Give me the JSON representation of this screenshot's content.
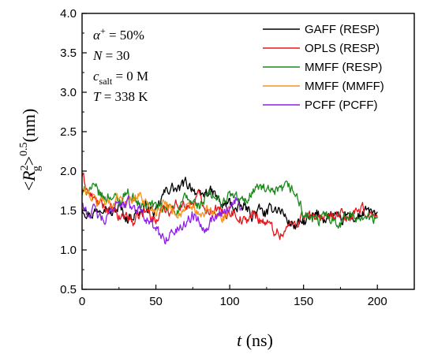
{
  "chart_data": {
    "type": "line",
    "title": "",
    "xlabel": "(ns)",
    "xlabel_var": "t",
    "ylabel": "(nm)",
    "ylabel_var": "R",
    "ylabel_sub": "g",
    "ylabel_sup": "2",
    "ylabel_exp": "0.5",
    "xlim": [
      0,
      225
    ],
    "ylim": [
      0.5,
      4.0
    ],
    "xticks": [
      "0",
      "50",
      "100",
      "150",
      "200"
    ],
    "xtick_values": [
      0,
      50,
      100,
      150,
      200
    ],
    "yticks": [
      "0.5",
      "1.0",
      "1.5",
      "2.0",
      "2.5",
      "3.0",
      "3.5",
      "4.0"
    ],
    "ytick_values": [
      0.5,
      1.0,
      1.5,
      2.0,
      2.5,
      3.0,
      3.5,
      4.0
    ],
    "grid": false,
    "legend_position": "top-right",
    "annotations": {
      "alpha": {
        "var": "α",
        "sup": "+",
        "value": " = 50%"
      },
      "N": {
        "var": "N",
        "value": " = 30"
      },
      "csalt": {
        "var": "c",
        "sub": "salt",
        "value": " = 0 M"
      },
      "T": {
        "var": "T",
        "value": " = 338 K"
      }
    },
    "series": [
      {
        "name": "GAFF (RESP)",
        "color": "#000000",
        "x_range": [
          0,
          200
        ],
        "anchors": [
          [
            0,
            1.55
          ],
          [
            5,
            1.45
          ],
          [
            10,
            1.5
          ],
          [
            15,
            1.6
          ],
          [
            20,
            1.45
          ],
          [
            25,
            1.55
          ],
          [
            30,
            1.4
          ],
          [
            35,
            1.45
          ],
          [
            40,
            1.5
          ],
          [
            45,
            1.55
          ],
          [
            50,
            1.45
          ],
          [
            55,
            1.7
          ],
          [
            60,
            1.8
          ],
          [
            65,
            1.75
          ],
          [
            70,
            1.85
          ],
          [
            75,
            1.8
          ],
          [
            80,
            1.65
          ],
          [
            85,
            1.75
          ],
          [
            90,
            1.7
          ],
          [
            95,
            1.55
          ],
          [
            100,
            1.6
          ],
          [
            105,
            1.5
          ],
          [
            110,
            1.55
          ],
          [
            115,
            1.45
          ],
          [
            120,
            1.5
          ],
          [
            125,
            1.45
          ],
          [
            130,
            1.55
          ],
          [
            135,
            1.5
          ],
          [
            140,
            1.35
          ],
          [
            145,
            1.3
          ],
          [
            150,
            1.35
          ],
          [
            155,
            1.4
          ],
          [
            160,
            1.45
          ],
          [
            165,
            1.4
          ],
          [
            170,
            1.45
          ],
          [
            175,
            1.35
          ],
          [
            180,
            1.45
          ],
          [
            185,
            1.4
          ],
          [
            190,
            1.45
          ],
          [
            195,
            1.5
          ],
          [
            200,
            1.4
          ]
        ]
      },
      {
        "name": "OPLS (RESP)",
        "color": "#e8141b",
        "x_range": [
          0,
          200
        ],
        "anchors": [
          [
            0,
            1.95
          ],
          [
            5,
            1.7
          ],
          [
            10,
            1.6
          ],
          [
            15,
            1.55
          ],
          [
            20,
            1.5
          ],
          [
            25,
            1.4
          ],
          [
            30,
            1.45
          ],
          [
            35,
            1.35
          ],
          [
            40,
            1.45
          ],
          [
            45,
            1.5
          ],
          [
            50,
            1.35
          ],
          [
            55,
            1.55
          ],
          [
            60,
            1.5
          ],
          [
            65,
            1.6
          ],
          [
            70,
            1.55
          ],
          [
            75,
            1.6
          ],
          [
            80,
            1.7
          ],
          [
            85,
            1.5
          ],
          [
            90,
            1.55
          ],
          [
            95,
            1.45
          ],
          [
            100,
            1.5
          ],
          [
            105,
            1.45
          ],
          [
            110,
            1.35
          ],
          [
            115,
            1.45
          ],
          [
            120,
            1.4
          ],
          [
            125,
            1.35
          ],
          [
            130,
            1.25
          ],
          [
            135,
            1.2
          ],
          [
            140,
            1.3
          ],
          [
            145,
            1.35
          ],
          [
            150,
            1.45
          ],
          [
            155,
            1.4
          ],
          [
            160,
            1.45
          ],
          [
            165,
            1.35
          ],
          [
            170,
            1.4
          ],
          [
            175,
            1.45
          ],
          [
            180,
            1.4
          ],
          [
            185,
            1.45
          ],
          [
            190,
            1.5
          ],
          [
            195,
            1.45
          ],
          [
            200,
            1.4
          ]
        ]
      },
      {
        "name": "MMFF (RESP)",
        "color": "#1a8a1a",
        "x_range": [
          0,
          200
        ],
        "anchors": [
          [
            0,
            1.7
          ],
          [
            5,
            1.8
          ],
          [
            10,
            1.75
          ],
          [
            15,
            1.65
          ],
          [
            20,
            1.7
          ],
          [
            25,
            1.6
          ],
          [
            30,
            1.75
          ],
          [
            35,
            1.65
          ],
          [
            40,
            1.55
          ],
          [
            45,
            1.6
          ],
          [
            50,
            1.55
          ],
          [
            55,
            1.5
          ],
          [
            60,
            1.55
          ],
          [
            65,
            1.5
          ],
          [
            70,
            1.65
          ],
          [
            75,
            1.6
          ],
          [
            80,
            1.55
          ],
          [
            85,
            1.7
          ],
          [
            90,
            1.65
          ],
          [
            95,
            1.6
          ],
          [
            100,
            1.7
          ],
          [
            105,
            1.65
          ],
          [
            110,
            1.6
          ],
          [
            115,
            1.75
          ],
          [
            120,
            1.8
          ],
          [
            125,
            1.75
          ],
          [
            130,
            1.7
          ],
          [
            135,
            1.75
          ],
          [
            140,
            1.8
          ],
          [
            145,
            1.7
          ],
          [
            150,
            1.45
          ],
          [
            155,
            1.4
          ],
          [
            160,
            1.35
          ],
          [
            165,
            1.45
          ],
          [
            170,
            1.4
          ],
          [
            175,
            1.35
          ],
          [
            180,
            1.45
          ],
          [
            185,
            1.4
          ],
          [
            190,
            1.45
          ],
          [
            195,
            1.4
          ],
          [
            200,
            1.35
          ]
        ]
      },
      {
        "name": "MMFF (MMFF)",
        "color": "#f7941d",
        "x_range": [
          0,
          100
        ],
        "anchors": [
          [
            0,
            1.75
          ],
          [
            5,
            1.7
          ],
          [
            10,
            1.6
          ],
          [
            15,
            1.65
          ],
          [
            20,
            1.55
          ],
          [
            25,
            1.7
          ],
          [
            30,
            1.6
          ],
          [
            35,
            1.65
          ],
          [
            40,
            1.7
          ],
          [
            45,
            1.55
          ],
          [
            50,
            1.5
          ],
          [
            55,
            1.6
          ],
          [
            60,
            1.55
          ],
          [
            65,
            1.45
          ],
          [
            70,
            1.5
          ],
          [
            75,
            1.55
          ],
          [
            80,
            1.4
          ],
          [
            85,
            1.5
          ],
          [
            90,
            1.45
          ],
          [
            95,
            1.4
          ],
          [
            100,
            1.45
          ]
        ]
      },
      {
        "name": "PCFF (PCFF)",
        "color": "#8e1ee8",
        "x_range": [
          0,
          108
        ],
        "anchors": [
          [
            0,
            1.6
          ],
          [
            4,
            1.45
          ],
          [
            8,
            1.5
          ],
          [
            12,
            1.4
          ],
          [
            16,
            1.35
          ],
          [
            20,
            1.5
          ],
          [
            24,
            1.65
          ],
          [
            28,
            1.55
          ],
          [
            32,
            1.6
          ],
          [
            36,
            1.5
          ],
          [
            40,
            1.55
          ],
          [
            44,
            1.4
          ],
          [
            48,
            1.3
          ],
          [
            52,
            1.2
          ],
          [
            56,
            1.15
          ],
          [
            60,
            1.2
          ],
          [
            64,
            1.25
          ],
          [
            68,
            1.3
          ],
          [
            72,
            1.4
          ],
          [
            76,
            1.45
          ],
          [
            80,
            1.35
          ],
          [
            84,
            1.3
          ],
          [
            88,
            1.4
          ],
          [
            92,
            1.45
          ],
          [
            96,
            1.5
          ],
          [
            100,
            1.55
          ],
          [
            104,
            1.65
          ],
          [
            108,
            1.5
          ]
        ]
      }
    ]
  }
}
